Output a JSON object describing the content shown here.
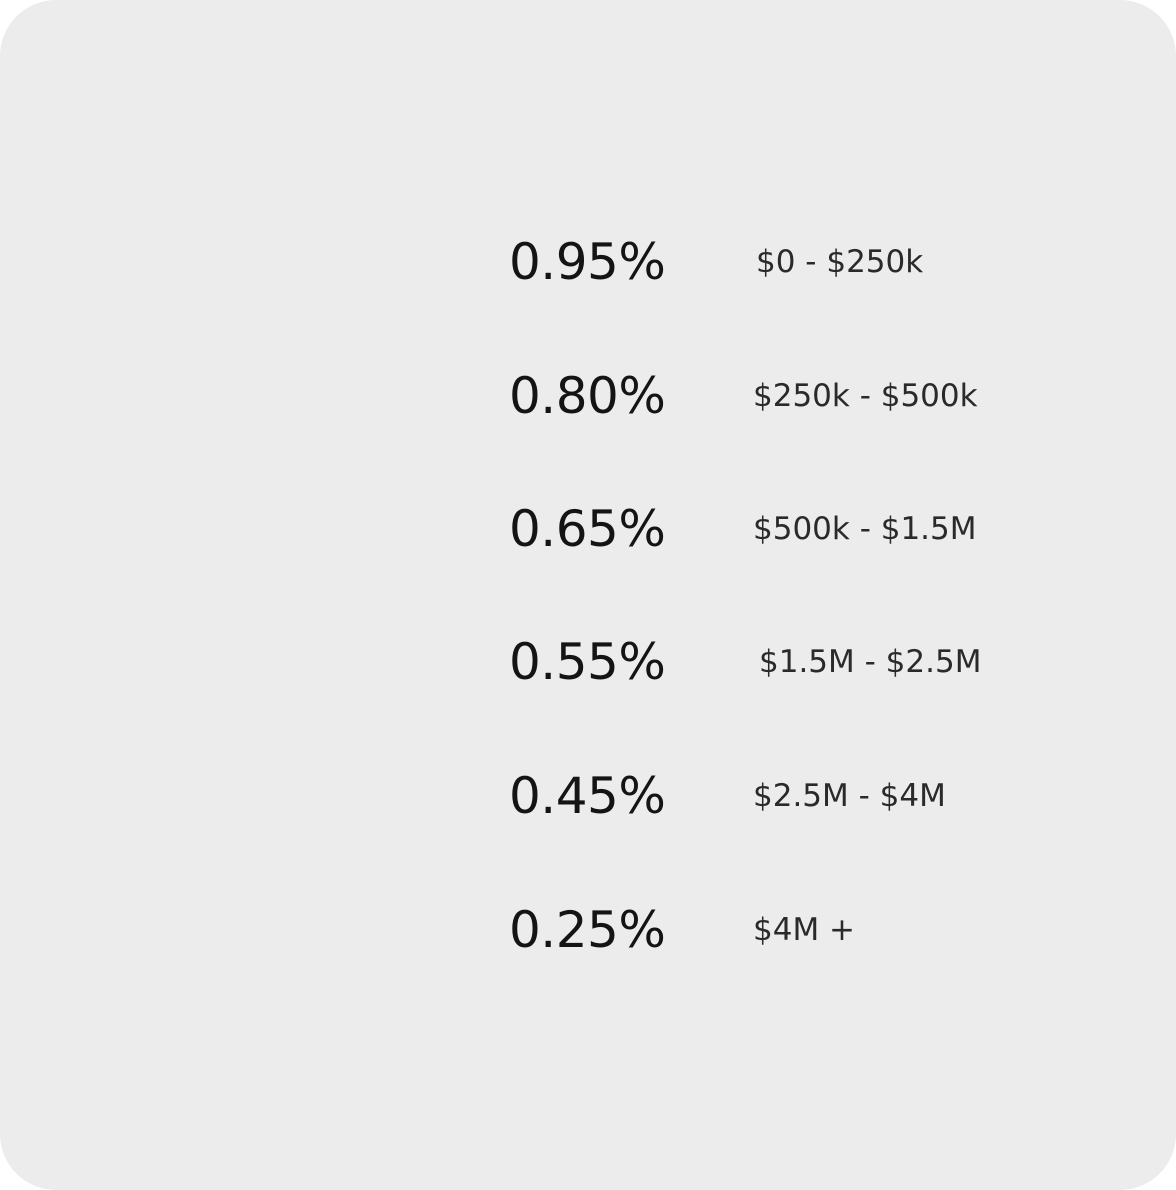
{
  "tiers": [
    {
      "rate": "0.95%",
      "range": "$0 - $250k"
    },
    {
      "rate": "0.80%",
      "range": "$250k - $500k"
    },
    {
      "rate": "0.65%",
      "range": "$500k - $1.5M"
    },
    {
      "rate": "0.55%",
      "range": "$1.5M - $2.5M"
    },
    {
      "rate": "0.45%",
      "range": "$2.5M - $4M"
    },
    {
      "rate": "0.25%",
      "range": "$4M +"
    }
  ]
}
